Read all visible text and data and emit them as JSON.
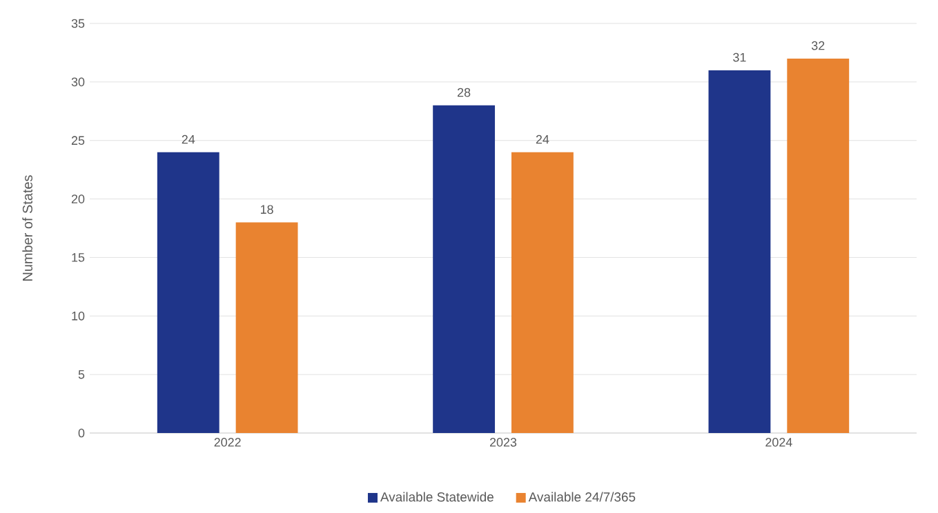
{
  "chart_data": {
    "type": "bar",
    "ylabel": "Number of States",
    "categories": [
      "2022",
      "2023",
      "2024"
    ],
    "series": [
      {
        "name": "Available Statewide",
        "color": "#1f358a",
        "values": [
          24,
          28,
          31
        ]
      },
      {
        "name": "Available 24/7/365",
        "color": "#e98330",
        "values": [
          18,
          24,
          32
        ]
      }
    ],
    "ylim": [
      0,
      35
    ],
    "yticks": [
      0,
      5,
      10,
      15,
      20,
      25,
      30,
      35
    ],
    "grid": "y",
    "legend": "bottom",
    "data_labels": true
  }
}
